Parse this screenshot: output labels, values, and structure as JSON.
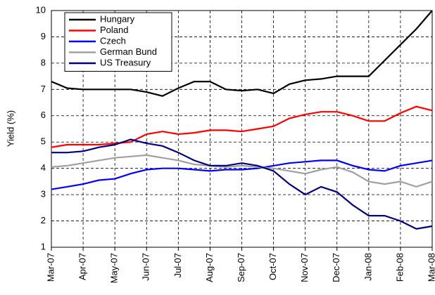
{
  "chart_data": {
    "type": "line",
    "y_label": "Yield (%)",
    "categories": [
      "Mar-07",
      null,
      "Apr-07",
      null,
      "May-07",
      null,
      "Jun-07",
      null,
      "Jul-07",
      null,
      "Aug-07",
      null,
      "Sep-07",
      null,
      "Oct-07",
      null,
      "Nov-07",
      null,
      "Dec-07",
      null,
      "Jan-08",
      null,
      "Feb-08",
      null,
      "Mar-08"
    ],
    "series": [
      {
        "name": "Hungary",
        "color": "#000000",
        "values": [
          7.3,
          7.05,
          7.0,
          7.0,
          7.0,
          7.0,
          6.9,
          6.75,
          7.05,
          7.3,
          7.3,
          7.0,
          6.95,
          7.0,
          6.85,
          7.2,
          7.35,
          7.4,
          7.5,
          7.5,
          7.5,
          8.1,
          8.7,
          9.3,
          10.0
        ]
      },
      {
        "name": "Poland",
        "color": "#ff0000",
        "values": [
          4.8,
          4.9,
          4.9,
          4.9,
          4.95,
          5.0,
          5.3,
          5.4,
          5.3,
          5.35,
          5.45,
          5.45,
          5.4,
          5.5,
          5.6,
          5.9,
          6.05,
          6.15,
          6.15,
          6.0,
          5.8,
          5.8,
          6.1,
          6.35,
          6.2
        ]
      },
      {
        "name": "Czech",
        "color": "#0000ff",
        "values": [
          3.2,
          3.3,
          3.4,
          3.55,
          3.6,
          3.8,
          3.95,
          4.0,
          4.0,
          3.95,
          3.9,
          3.95,
          3.95,
          4.0,
          4.1,
          4.2,
          4.25,
          4.3,
          4.3,
          4.1,
          3.95,
          3.9,
          4.1,
          4.2,
          4.3
        ]
      },
      {
        "name": "German Bund",
        "color": "#a0a0a0",
        "values": [
          4.05,
          4.1,
          4.2,
          4.3,
          4.4,
          4.45,
          4.5,
          4.4,
          4.3,
          4.15,
          4.1,
          4.05,
          4.1,
          4.05,
          4.0,
          3.9,
          3.8,
          3.95,
          4.05,
          3.85,
          3.5,
          3.4,
          3.5,
          3.3,
          3.5
        ]
      },
      {
        "name": "US Treasury",
        "color": "#000080",
        "values": [
          4.6,
          4.6,
          4.65,
          4.8,
          4.9,
          5.1,
          4.95,
          4.85,
          4.6,
          4.3,
          4.1,
          4.1,
          4.2,
          4.1,
          3.9,
          3.4,
          3.0,
          3.3,
          3.1,
          2.6,
          2.2,
          2.2,
          2.0,
          1.7,
          1.8
        ]
      }
    ],
    "ylim": [
      1,
      10
    ],
    "yticks": [
      1,
      2,
      3,
      4,
      5,
      6,
      7,
      8,
      9,
      10
    ],
    "grid": true,
    "legend": "top-left"
  }
}
